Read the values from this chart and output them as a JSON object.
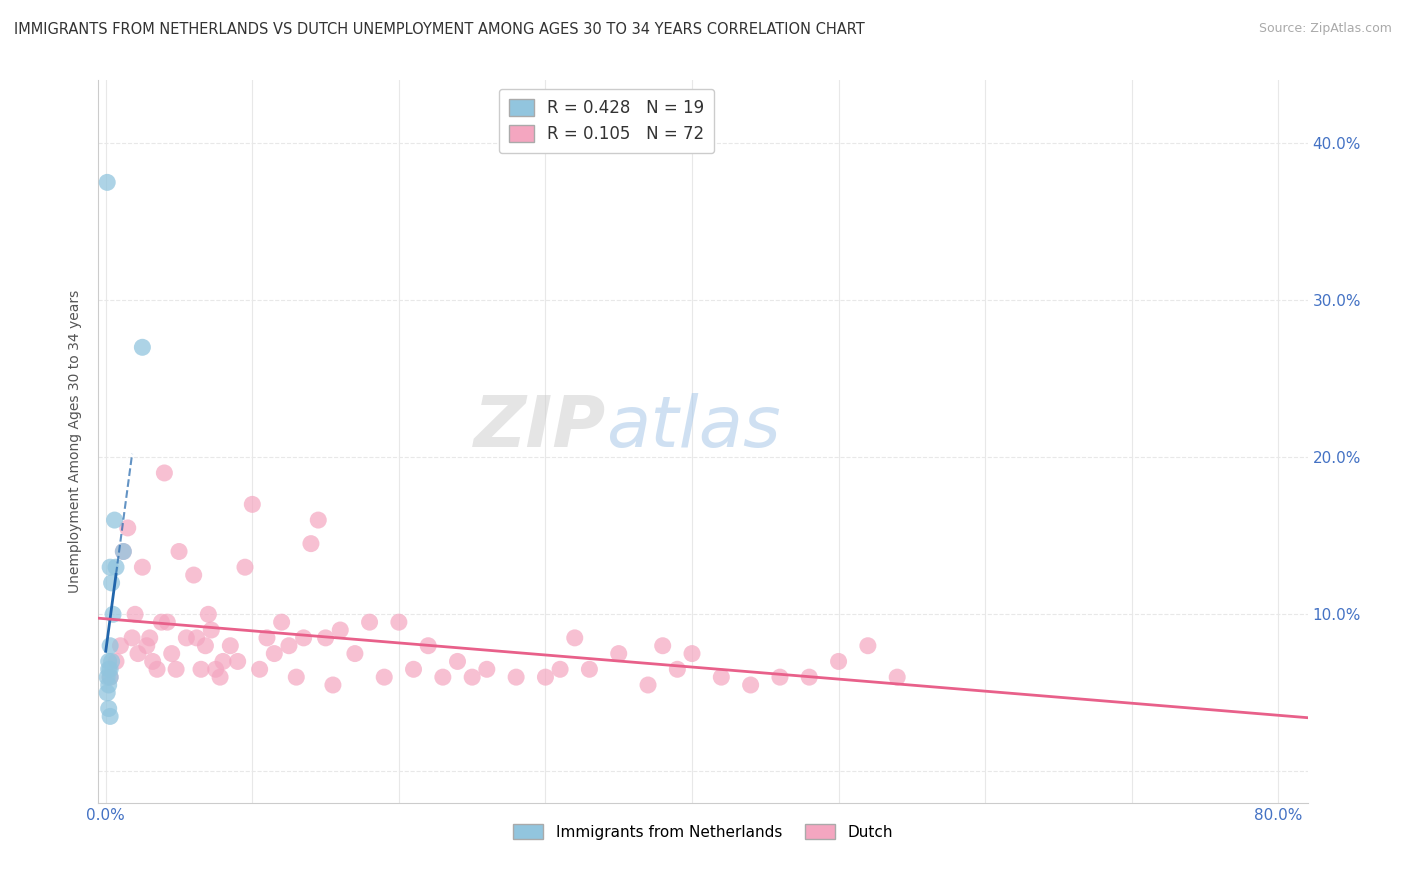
{
  "title": "IMMIGRANTS FROM NETHERLANDS VS DUTCH UNEMPLOYMENT AMONG AGES 30 TO 34 YEARS CORRELATION CHART",
  "source": "Source: ZipAtlas.com",
  "ylabel": "Unemployment Among Ages 30 to 34 years",
  "xlim": [
    -0.005,
    0.82
  ],
  "ylim": [
    -0.02,
    0.44
  ],
  "xticks": [
    0.0,
    0.1,
    0.2,
    0.3,
    0.4,
    0.5,
    0.6,
    0.7,
    0.8
  ],
  "yticks": [
    0.0,
    0.1,
    0.2,
    0.3,
    0.4
  ],
  "blue_scatter_x": [
    0.001,
    0.001,
    0.001,
    0.002,
    0.002,
    0.002,
    0.002,
    0.003,
    0.003,
    0.003,
    0.003,
    0.003,
    0.004,
    0.004,
    0.005,
    0.006,
    0.007,
    0.012,
    0.025
  ],
  "blue_scatter_y": [
    0.375,
    0.06,
    0.05,
    0.07,
    0.055,
    0.065,
    0.04,
    0.13,
    0.08,
    0.065,
    0.06,
    0.035,
    0.07,
    0.12,
    0.1,
    0.16,
    0.13,
    0.14,
    0.27
  ],
  "pink_scatter_x": [
    0.003,
    0.007,
    0.01,
    0.012,
    0.015,
    0.018,
    0.02,
    0.022,
    0.025,
    0.028,
    0.03,
    0.032,
    0.035,
    0.038,
    0.04,
    0.042,
    0.045,
    0.048,
    0.05,
    0.055,
    0.06,
    0.062,
    0.065,
    0.068,
    0.07,
    0.072,
    0.075,
    0.078,
    0.08,
    0.085,
    0.09,
    0.095,
    0.1,
    0.105,
    0.11,
    0.115,
    0.12,
    0.125,
    0.13,
    0.135,
    0.14,
    0.145,
    0.15,
    0.155,
    0.16,
    0.17,
    0.18,
    0.19,
    0.2,
    0.21,
    0.22,
    0.23,
    0.24,
    0.25,
    0.26,
    0.28,
    0.3,
    0.31,
    0.32,
    0.33,
    0.35,
    0.37,
    0.38,
    0.39,
    0.4,
    0.42,
    0.44,
    0.46,
    0.48,
    0.5,
    0.52,
    0.54
  ],
  "pink_scatter_y": [
    0.06,
    0.07,
    0.08,
    0.14,
    0.155,
    0.085,
    0.1,
    0.075,
    0.13,
    0.08,
    0.085,
    0.07,
    0.065,
    0.095,
    0.19,
    0.095,
    0.075,
    0.065,
    0.14,
    0.085,
    0.125,
    0.085,
    0.065,
    0.08,
    0.1,
    0.09,
    0.065,
    0.06,
    0.07,
    0.08,
    0.07,
    0.13,
    0.17,
    0.065,
    0.085,
    0.075,
    0.095,
    0.08,
    0.06,
    0.085,
    0.145,
    0.16,
    0.085,
    0.055,
    0.09,
    0.075,
    0.095,
    0.06,
    0.095,
    0.065,
    0.08,
    0.06,
    0.07,
    0.06,
    0.065,
    0.06,
    0.06,
    0.065,
    0.085,
    0.065,
    0.075,
    0.055,
    0.08,
    0.065,
    0.075,
    0.06,
    0.055,
    0.06,
    0.06,
    0.07,
    0.08,
    0.06
  ],
  "blue_R": 0.428,
  "blue_N": 19,
  "pink_R": 0.105,
  "pink_N": 72,
  "blue_scatter_color": "#92c5de",
  "blue_line_color": "#2166ac",
  "pink_scatter_color": "#f4a6c0",
  "pink_line_color": "#e8608a",
  "watermark_zip": "ZIP",
  "watermark_atlas": "atlas",
  "background_color": "#ffffff",
  "grid_color": "#e8e8e8",
  "grid_style_h": "dashed",
  "tick_color": "#4472c4",
  "title_color": "#333333",
  "source_color": "#aaaaaa"
}
